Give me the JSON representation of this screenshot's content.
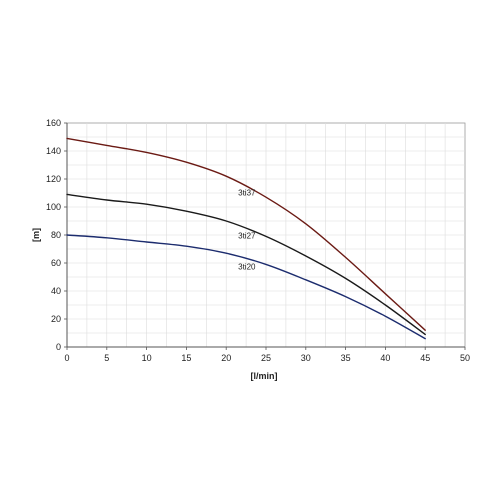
{
  "chart_data": {
    "type": "line",
    "title": "",
    "xlabel": "[l/min]",
    "ylabel": "[m]",
    "xlim": [
      0,
      50
    ],
    "ylim": [
      0,
      160
    ],
    "x_ticks": [
      "0",
      "5",
      "10",
      "15",
      "20",
      "25",
      "30",
      "35",
      "40",
      "45",
      "50"
    ],
    "y_ticks": [
      "0",
      "20",
      "40",
      "60",
      "80",
      "100",
      "120",
      "140",
      "160"
    ],
    "grid": true,
    "legend": "none",
    "series": [
      {
        "name": "3ti37",
        "color": "#6b1a14",
        "x": [
          0,
          5,
          10,
          15,
          20,
          25,
          30,
          35,
          40,
          45
        ],
        "y": [
          149,
          144,
          139,
          132,
          122,
          107,
          88,
          64,
          38,
          12
        ]
      },
      {
        "name": "3ti27",
        "color": "#1a1a1a",
        "x": [
          0,
          5,
          10,
          15,
          20,
          25,
          30,
          35,
          40,
          45
        ],
        "y": [
          109,
          105,
          102,
          97,
          90,
          79,
          65,
          49,
          30,
          9
        ]
      },
      {
        "name": "3ti20",
        "color": "#1c2c6e",
        "x": [
          0,
          5,
          10,
          15,
          20,
          25,
          30,
          35,
          40,
          45
        ],
        "y": [
          80,
          78,
          75,
          72,
          67,
          59,
          48,
          36,
          22,
          6
        ]
      }
    ]
  }
}
